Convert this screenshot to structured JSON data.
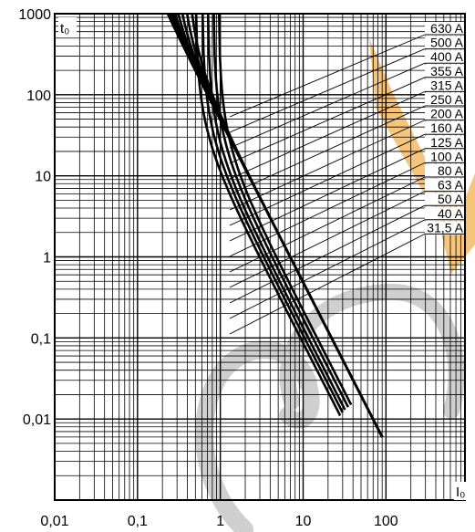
{
  "chart_data": {
    "type": "line",
    "title": "",
    "xlabel": "I₀",
    "ylabel": "t₀",
    "x_scale": "log",
    "y_scale": "log",
    "xlim": [
      0.01,
      900
    ],
    "ylim": [
      0.001,
      1000
    ],
    "grid": true,
    "x_tick_labels": [
      "0,01",
      "0,1",
      "1",
      "10",
      "100"
    ],
    "y_tick_labels": [
      "1000",
      "100",
      "10",
      "1",
      "0,1",
      "0,01"
    ],
    "line_color": "#000000",
    "band_color": "#f3b24d",
    "watermark_color": "#cfcfcf",
    "legend_position": "top-right",
    "series": [
      {
        "name": "630 A",
        "x0": 0.95,
        "x_end": 38,
        "y_end": 0.015
      },
      {
        "name": "500 A",
        "x0": 0.82,
        "x_end": 35,
        "y_end": 0.014
      },
      {
        "name": "400 A",
        "x0": 0.7,
        "x_end": 32,
        "y_end": 0.013
      },
      {
        "name": "355 A",
        "x0": 0.6,
        "x_end": 30,
        "y_end": 0.012
      },
      {
        "name": "315 A",
        "x0": 0.5,
        "x_end": 28,
        "y_end": 0.011
      },
      {
        "name": "250 A",
        "x0": 0.4,
        "x_end": 90,
        "y_end": 0.006
      },
      {
        "name": "200 A",
        "x0": 0.33,
        "x_end": 90,
        "y_end": 0.006
      },
      {
        "name": "160 A",
        "x0": 0.27,
        "x_end": 90,
        "y_end": 0.006
      },
      {
        "name": "125 A",
        "x0": 0.22,
        "x_end": 90,
        "y_end": 0.006
      },
      {
        "name": "100 A",
        "x0": 0.18,
        "x_end": 90,
        "y_end": 0.006
      },
      {
        "name": "80 A",
        "x0": 0.15,
        "x_end": 90,
        "y_end": 0.006
      },
      {
        "name": "63 A",
        "x0": 0.12,
        "x_end": 90,
        "y_end": 0.006
      },
      {
        "name": "50 A",
        "x0": 0.1,
        "x_end": 90,
        "y_end": 0.006
      },
      {
        "name": "40 A",
        "x0": 0.085,
        "x_end": 90,
        "y_end": 0.006
      },
      {
        "name": "31,5 A",
        "x0": 0.07,
        "x_end": 90,
        "y_end": 0.006
      }
    ]
  }
}
